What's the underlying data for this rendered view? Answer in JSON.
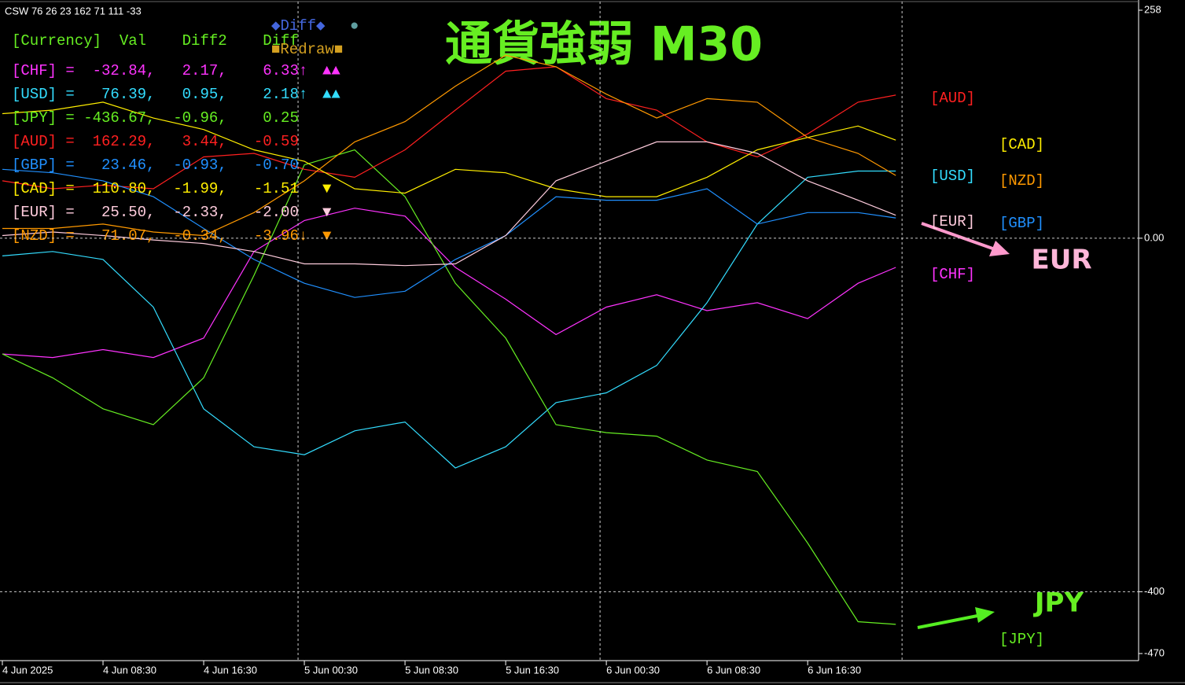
{
  "chart_data": {
    "type": "line",
    "title": "通貨強弱  M30",
    "subtitle": "CSW 76 26 23 162 71 111 -33",
    "x": [
      0,
      4,
      8,
      12,
      16,
      20,
      24,
      28,
      32,
      36,
      40,
      44,
      48,
      52,
      56,
      60,
      64,
      68,
      71
    ],
    "xlim": [
      0,
      90.3
    ],
    "xticks": [
      {
        "value": 0,
        "label": "4 Jun 2025"
      },
      {
        "value": 8,
        "label": "4 Jun 08:30"
      },
      {
        "value": 16,
        "label": "4 Jun 16:30"
      },
      {
        "value": 24,
        "label": "5 Jun 00:30"
      },
      {
        "value": 32,
        "label": "5 Jun 08:30"
      },
      {
        "value": 40,
        "label": "5 Jun 16:30"
      },
      {
        "value": 48,
        "label": "6 Jun 00:30"
      },
      {
        "value": 56,
        "label": "6 Jun 08:30"
      },
      {
        "value": 64,
        "label": "6 Jun 16:30"
      }
    ],
    "ylim": [
      -470,
      258
    ],
    "yticks": [
      258,
      {
        "value": 0,
        "label": "0.00"
      },
      -400,
      -470
    ],
    "grid": true,
    "day_separators": [
      23.5,
      47.5,
      71.5
    ],
    "series": [
      {
        "name": "[CHF]",
        "color": "#ff33ff",
        "values": [
          -131,
          -135,
          -126,
          -135,
          -113,
          -15,
          20,
          34,
          25,
          -33,
          -69,
          -109,
          -78,
          -64,
          -82,
          -73,
          -91,
          -51,
          -33
        ]
      },
      {
        "name": "[USD]",
        "color": "#33ddff",
        "values": [
          -20,
          -15,
          -24,
          -78,
          -193,
          -236,
          -245,
          -218,
          -208,
          -260,
          -236,
          -186,
          -175,
          -144,
          -73,
          16,
          69,
          76,
          76
        ]
      },
      {
        "name": "[JPY]",
        "color": "#66ee22",
        "values": [
          -131,
          -158,
          -193,
          -211,
          -158,
          -42,
          83,
          100,
          47,
          -51,
          -113,
          -211,
          -220,
          -224,
          -251,
          -264,
          -345,
          -434,
          -437
        ]
      },
      {
        "name": "[AUD]",
        "color": "#ff2020",
        "values": [
          65,
          56,
          60,
          56,
          92,
          96,
          78,
          69,
          100,
          145,
          189,
          194,
          158,
          145,
          109,
          92,
          118,
          154,
          162
        ]
      },
      {
        "name": "[GBP]",
        "color": "#2090ff",
        "values": [
          78,
          74,
          65,
          47,
          11,
          -24,
          -51,
          -67,
          -60,
          -24,
          3,
          47,
          43,
          43,
          56,
          16,
          29,
          29,
          23
        ]
      },
      {
        "name": "[CAD]",
        "color": "#ffee00",
        "values": [
          141,
          145,
          154,
          136,
          123,
          100,
          87,
          56,
          51,
          78,
          74,
          56,
          47,
          47,
          69,
          100,
          114,
          127,
          111
        ]
      },
      {
        "name": "[EUR]",
        "color": "#ffccdd",
        "values": [
          3,
          7,
          3,
          -2,
          -6,
          -15,
          -29,
          -29,
          -31,
          -29,
          3,
          65,
          87,
          109,
          109,
          96,
          65,
          43,
          26
        ]
      },
      {
        "name": "[NZD]",
        "color": "#ff9900",
        "values": [
          11,
          11,
          16,
          7,
          3,
          29,
          65,
          109,
          132,
          172,
          207,
          194,
          163,
          136,
          158,
          154,
          114,
          96,
          71
        ]
      }
    ],
    "annotations": [
      "EUR",
      "JPY"
    ]
  },
  "panel": {
    "header": "[Currency]  Val    Diff2    Diff",
    "rows": [
      {
        "text": "[CHF] =  -32.84,   2.17,    6.33↑",
        "marks": "▲▲"
      },
      {
        "text": "[USD] =   76.39,   0.95,    2.18↑",
        "marks": "▲▲"
      },
      {
        "text": "[JPY] = -436.67,  -0.96,    0.25"
      },
      {
        "text": "[AUD] =  162.29,   3.44,   -0.59"
      },
      {
        "text": "[GBP] =   23.46,  -0.93,   -0.70"
      },
      {
        "text": "[CAD] =  110.80,  -1.99,   -1.51",
        "marks": "▼"
      },
      {
        "text": "[EUR] =   25.50,  -2.33,   -2.00",
        "marks": "▼"
      },
      {
        "text": "[NZD] =   71.07,  -0.34,   -3.96↓",
        "marks": "▼"
      }
    ],
    "buttons": [
      "◆Diff◆",
      "●",
      "■Redraw■"
    ]
  }
}
